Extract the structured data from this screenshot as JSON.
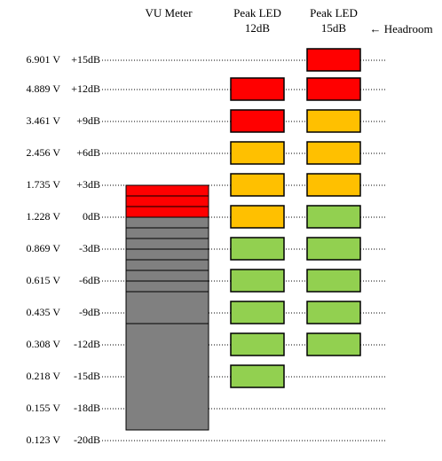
{
  "headers": {
    "vu": "VU Meter",
    "headroom": "← Headroom"
  },
  "rows": [
    {
      "voltage": "6.901 V",
      "db": "+15dB"
    },
    {
      "voltage": "4.889 V",
      "db": "+12dB"
    },
    {
      "voltage": "3.461 V",
      "db": "+9dB"
    },
    {
      "voltage": "2.456 V",
      "db": "+6dB"
    },
    {
      "voltage": "1.735 V",
      "db": "+3dB"
    },
    {
      "voltage": "1.228 V",
      "db": "0dB"
    },
    {
      "voltage": "0.869 V",
      "db": "-3dB"
    },
    {
      "voltage": "0.615 V",
      "db": "-6dB"
    },
    {
      "voltage": "0.435 V",
      "db": "-9dB"
    },
    {
      "voltage": "0.308 V",
      "db": "-12dB"
    },
    {
      "voltage": "0.218 V",
      "db": "-15dB"
    },
    {
      "voltage": "0.155 V",
      "db": "-18dB"
    },
    {
      "voltage": "0.123 V",
      "db": "-20dB"
    }
  ],
  "leds": [
    {
      "header": [
        "Peak LED",
        "12dB"
      ],
      "colors": [
        null,
        "#ff0000",
        "#ff0000",
        "#ffc000",
        "#ffc000",
        "#ffc000",
        "#92d050",
        "#92d050",
        "#92d050",
        "#92d050",
        "#92d050",
        null,
        null
      ]
    },
    {
      "header": [
        "Peak LED",
        "15dB"
      ],
      "colors": [
        "#ff0000",
        "#ff0000",
        "#ffc000",
        "#ffc000",
        "#ffc000",
        "#92d050",
        "#92d050",
        "#92d050",
        "#92d050",
        "#92d050",
        null,
        null,
        null
      ]
    }
  ]
}
